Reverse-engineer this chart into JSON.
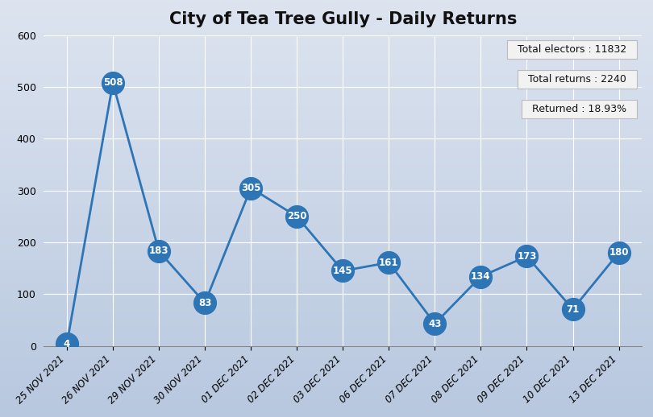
{
  "title": "City of Tea Tree Gully - Daily Returns",
  "x_labels": [
    "25 NOV 2021",
    "26 NOV 2021",
    "29 NOV 2021",
    "30 NOV 2021",
    "01 DEC 2021",
    "02 DEC 2021",
    "03 DEC 2021",
    "06 DEC 2021",
    "07 DEC 2021",
    "08 DEC 2021",
    "09 DEC 2021",
    "10 DEC 2021",
    "13 DEC 2021"
  ],
  "y_values": [
    4,
    508,
    183,
    83,
    305,
    250,
    145,
    161,
    43,
    134,
    173,
    71,
    180
  ],
  "ylim": [
    0,
    600
  ],
  "yticks": [
    0,
    100,
    200,
    300,
    400,
    500,
    600
  ],
  "line_color": "#2E75B6",
  "marker_color": "#2E75B6",
  "marker_size": 20,
  "title_fontsize": 15,
  "total_electors": "Total electors : 11832",
  "total_returns": "Total returns : 2240",
  "returned_pct": "Returned : 18.93%",
  "bg_color_top": "#b8c8df",
  "bg_color_bottom": "#dde4f0",
  "grid_color": "#ffffff",
  "text_color_white": "#ffffff",
  "info_box_bg": "#f2f2f2",
  "info_box_border": "#bbbbbb",
  "axis_label_fontsize": 8.5,
  "value_label_fontsize": 8.5
}
